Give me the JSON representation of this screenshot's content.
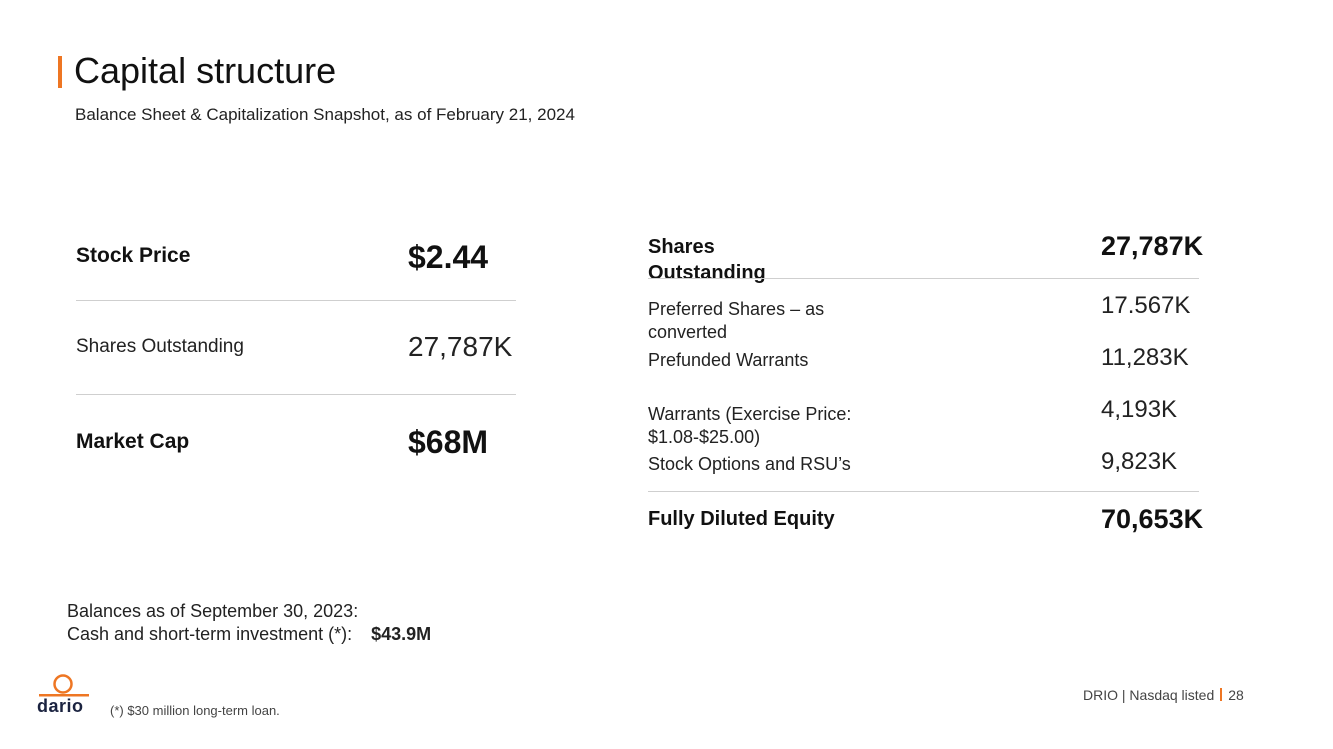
{
  "title": "Capital structure",
  "subtitle": "Balance Sheet & Capitalization Snapshot, as of February 21, 2024",
  "left_table": {
    "rows": [
      {
        "label": "Stock Price",
        "value": "$2.44"
      },
      {
        "label": "Shares Outstanding",
        "value": "27,787K"
      },
      {
        "label": "Market Cap",
        "value": "$68M"
      }
    ]
  },
  "right_table": {
    "header": {
      "label": "Shares Outstanding",
      "value": "27,787K"
    },
    "rows": [
      {
        "label": "Preferred Shares – as converted",
        "value": "17.567K"
      },
      {
        "label": "Prefunded Warrants",
        "value": "11,283K"
      },
      {
        "label": "Warrants (Exercise Price: $1.08-$25.00)",
        "value": "4,193K"
      },
      {
        "label": "Stock Options and RSU’s",
        "value": "9,823K"
      }
    ],
    "total": {
      "label": "Fully Diluted Equity",
      "value": "70,653K"
    }
  },
  "balances": {
    "line1": "Balances as of September 30, 2023:",
    "line2_label": "Cash and short-term investment (*):",
    "line2_value": "$43.9M"
  },
  "footnote": "(*) $30 million long-term loan.",
  "logo": {
    "text": "dario",
    "icon": "dario-ring-logo-icon"
  },
  "footer": {
    "left": "DRIO | Nasdaq listed",
    "page": "28"
  },
  "colors": {
    "accent": "#ee7623",
    "brand_dark": "#1b2340"
  }
}
